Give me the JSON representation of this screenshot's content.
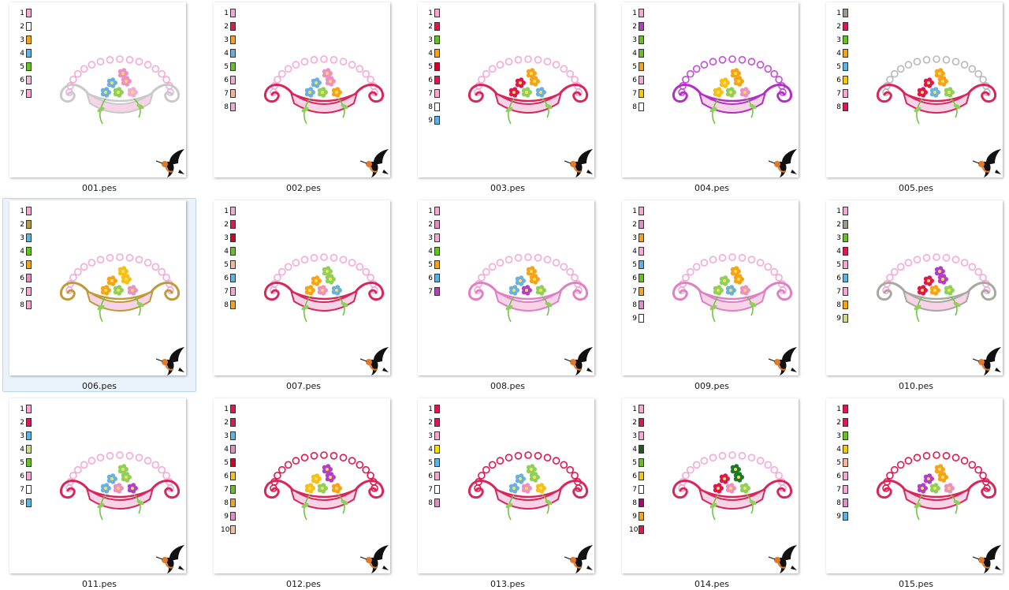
{
  "files": [
    {
      "name": "001.pes",
      "selected": false,
      "frame": "#c9c9c9",
      "bead": "#f4a9d8",
      "flowers": [
        "#6ab0e0",
        "#f08fc4",
        "#8fd05a",
        "#f4a9d8"
      ],
      "swatches": [
        "#f7a7d3",
        "#ffffff",
        "#f7a318",
        "#5db3e3",
        "#66c125",
        "#f5b8d8",
        "#f7a7d3"
      ]
    },
    {
      "name": "002.pes",
      "selected": false,
      "frame": "#d9265a",
      "bead": "#f4a9d8",
      "flowers": [
        "#6ab0e0",
        "#f08fc4",
        "#8fd05a",
        "#f7a318"
      ],
      "swatches": [
        "#f7a7d3",
        "#e0174f",
        "#f7a318",
        "#5db3e3",
        "#66c125",
        "#f7a7d3",
        "#f7b49a",
        "#f7a7d3"
      ]
    },
    {
      "name": "003.pes",
      "selected": false,
      "frame": "#d9265a",
      "bead": "#f4a9d8",
      "flowers": [
        "#e0174f",
        "#f7a318",
        "#8fd05a",
        "#6ab0e0"
      ],
      "swatches": [
        "#f7a7d3",
        "#e0174f",
        "#66c125",
        "#f7a318",
        "#d4002a",
        "#e0174f",
        "#f7a7d3",
        "#ffffff",
        "#5db3e3"
      ]
    },
    {
      "name": "004.pes",
      "selected": false,
      "frame": "#b22fc4",
      "bead": "#c34bd6",
      "flowers": [
        "#f7c018",
        "#f7a318",
        "#8fd05a",
        "#f08fc4"
      ],
      "swatches": [
        "#f7a7d3",
        "#b43fc6",
        "#66c125",
        "#66c125",
        "#f7a318",
        "#f7a7d3",
        "#f7c700",
        "#ffffff"
      ]
    },
    {
      "name": "005.pes",
      "selected": false,
      "frame": "#d9265a",
      "bead": "#b8b8b8",
      "flowers": [
        "#e0174f",
        "#f7a318",
        "#6ab0e0",
        "#8fd05a"
      ],
      "swatches": [
        "#9a9a8e",
        "#e0174f",
        "#66c125",
        "#f7a318",
        "#5db3e3",
        "#f7c700",
        "#f7a7d3",
        "#e0174f"
      ]
    },
    {
      "name": "006.pes",
      "selected": true,
      "frame": "#c09a3a",
      "bead": "#f4a9d8",
      "flowers": [
        "#f7a318",
        "#f7c018",
        "#8fd05a",
        "#f08fc4"
      ],
      "swatches": [
        "#f7a7d3",
        "#b59a4a",
        "#5db3e3",
        "#66c125",
        "#f7a318",
        "#e08fc4",
        "#f7a7d3",
        "#f7a7d3"
      ]
    },
    {
      "name": "007.pes",
      "selected": false,
      "frame": "#d9265a",
      "bead": "#f4a9d8",
      "flowers": [
        "#f7a318",
        "#8fd05a",
        "#f08fc4",
        "#6ab0e0"
      ],
      "swatches": [
        "#f7a7d3",
        "#e0174f",
        "#d4002a",
        "#66c125",
        "#f7b49a",
        "#5db3e3",
        "#f7a7d3",
        "#f7a318"
      ]
    },
    {
      "name": "008.pes",
      "selected": false,
      "frame": "#e07fc6",
      "bead": "#f4a9d8",
      "flowers": [
        "#6ab0e0",
        "#f7a318",
        "#b43fc6",
        "#8fd05a"
      ],
      "swatches": [
        "#f7a7d3",
        "#e08fc4",
        "#f7a7d3",
        "#66c125",
        "#f7a318",
        "#5db3e3",
        "#b43fc6"
      ]
    },
    {
      "name": "009.pes",
      "selected": false,
      "frame": "#e07fc6",
      "bead": "#f4a9d8",
      "flowers": [
        "#8fd05a",
        "#f7a318",
        "#6ab0e0",
        "#f08fc4"
      ],
      "swatches": [
        "#f7a7d3",
        "#e08fc4",
        "#f7a318",
        "#f7a7d3",
        "#5db3e3",
        "#66c125",
        "#f7a318",
        "#e08fc4",
        "#ffffff"
      ]
    },
    {
      "name": "010.pes",
      "selected": false,
      "frame": "#a8a8a0",
      "bead": "#f4a9d8",
      "flowers": [
        "#e0174f",
        "#b43fc6",
        "#f7a318",
        "#8fd05a"
      ],
      "swatches": [
        "#f7a7d3",
        "#9a9a8e",
        "#66c125",
        "#e0174f",
        "#f7a7d3",
        "#5db3e3",
        "#f7a7d3",
        "#f7a318",
        "#c6e08a"
      ]
    },
    {
      "name": "011.pes",
      "selected": false,
      "frame": "#d9265a",
      "bead": "#f4a9d8",
      "flowers": [
        "#6ab0e0",
        "#8fd05a",
        "#f08fc4",
        "#b43fc6"
      ],
      "swatches": [
        "#f7a7d3",
        "#e0174f",
        "#5db3e3",
        "#c6e08a",
        "#66c125",
        "#f7a7d3",
        "#ffffff",
        "#5db3e3"
      ]
    },
    {
      "name": "012.pes",
      "selected": false,
      "frame": "#d9265a",
      "bead": "#e0174f",
      "flowers": [
        "#f7c018",
        "#b43fc6",
        "#8fd05a",
        "#f7a318"
      ],
      "swatches": [
        "#e0174f",
        "#e0174f",
        "#5db3e3",
        "#e08fc4",
        "#d4002a",
        "#f7c700",
        "#66c125",
        "#f7a318",
        "#e08fc4",
        "#f7c09a"
      ]
    },
    {
      "name": "013.pes",
      "selected": false,
      "frame": "#d9265a",
      "bead": "#e0174f",
      "flowers": [
        "#6ab0e0",
        "#8fd05a",
        "#f08fc4",
        "#f7c018"
      ],
      "swatches": [
        "#e0174f",
        "#e0174f",
        "#f7a7d3",
        "#f7e000",
        "#5db3e3",
        "#f7a7d3",
        "#ffffff",
        "#e08fc4"
      ]
    },
    {
      "name": "014.pes",
      "selected": false,
      "frame": "#d9265a",
      "bead": "#f4a9d8",
      "flowers": [
        "#e0174f",
        "#1a7a2a",
        "#f08fc4",
        "#8fd05a"
      ],
      "swatches": [
        "#f7a7d3",
        "#e0174f",
        "#f7a7d3",
        "#1a5a1a",
        "#66c125",
        "#f7c700",
        "#ffffff",
        "#b0007a",
        "#f7a318",
        "#e0174f"
      ]
    },
    {
      "name": "015.pes",
      "selected": false,
      "frame": "#d9265a",
      "bead": "#e0174f",
      "flowers": [
        "#b43fc6",
        "#f7a318",
        "#8fd05a",
        "#f08fc4"
      ],
      "swatches": [
        "#e0174f",
        "#e0174f",
        "#66c125",
        "#f7c700",
        "#f7b49a",
        "#f7a7d3",
        "#f7a7d3",
        "#e08fc4",
        "#5db3e3"
      ]
    }
  ]
}
